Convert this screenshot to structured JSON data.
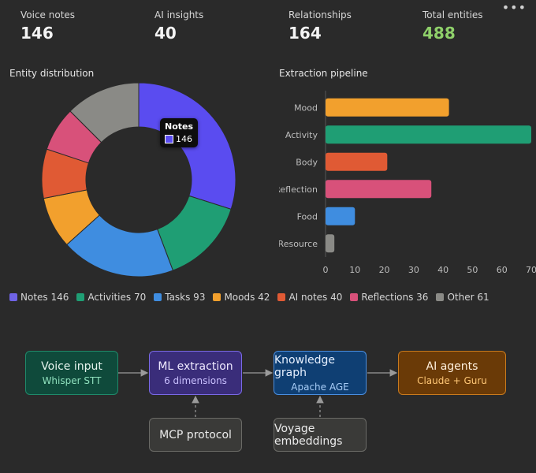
{
  "stats": [
    {
      "label": "Voice notes",
      "value": "146"
    },
    {
      "label": "AI insights",
      "value": "40"
    },
    {
      "label": "Relationships",
      "value": "164"
    },
    {
      "label": "Total entities",
      "value": "488"
    }
  ],
  "menu_icon": "ellipsis-icon",
  "entity_section_title": "Entity distribution",
  "pipeline_section_title": "Extraction pipeline",
  "tooltip": {
    "title": "Notes",
    "value": "146",
    "color": "#5a4cf0"
  },
  "legend": [
    {
      "label": "Notes 146",
      "color": "#6f63e6"
    },
    {
      "label": "Activities 70",
      "color": "#1f9e74"
    },
    {
      "label": "Tasks 93",
      "color": "#3f8de0"
    },
    {
      "label": "Moods 42",
      "color": "#f2a02d"
    },
    {
      "label": "AI notes 40",
      "color": "#e05a34"
    },
    {
      "label": "Reflections 36",
      "color": "#d8517a"
    },
    {
      "label": "Other 61",
      "color": "#8a8a86"
    }
  ],
  "chart_data": [
    {
      "type": "pie",
      "donut": true,
      "slices": [
        {
          "name": "Notes",
          "value": 146,
          "color": "#5a4cf0"
        },
        {
          "name": "Activities",
          "value": 70,
          "color": "#1f9e74"
        },
        {
          "name": "Tasks",
          "value": 93,
          "color": "#3f8de0"
        },
        {
          "name": "Moods",
          "value": 42,
          "color": "#f2a02d"
        },
        {
          "name": "AI notes",
          "value": 40,
          "color": "#e05a34"
        },
        {
          "name": "Reflections",
          "value": 36,
          "color": "#d8517a"
        },
        {
          "name": "Other",
          "value": 61,
          "color": "#8a8a86"
        }
      ]
    },
    {
      "type": "bar",
      "orientation": "horizontal",
      "categories": [
        "Mood",
        "Activity",
        "Body",
        "Reflection",
        "Food",
        "Resource"
      ],
      "values": [
        42,
        70,
        21,
        36,
        10,
        3
      ],
      "colors": [
        "#f2a02d",
        "#1f9e74",
        "#e05a34",
        "#d8517a",
        "#3f8de0",
        "#8a8a86"
      ],
      "xticks": [
        0,
        10,
        20,
        30,
        40,
        50,
        60,
        70
      ],
      "xlim": [
        0,
        70
      ],
      "grid": false
    }
  ],
  "flow": {
    "nodes": [
      {
        "title": "Voice input",
        "subtitle": "Whisper STT",
        "bg": "#0f4a3b",
        "border": "#1f8a6a",
        "title_color": "#e6f4ee",
        "sub_color": "#8fe0bd"
      },
      {
        "title": "ML extraction",
        "subtitle": "6 dimensions",
        "bg": "#3a2d7a",
        "border": "#7a69e6",
        "title_color": "#efeaff",
        "sub_color": "#c9c0ff"
      },
      {
        "title": "Knowledge graph",
        "subtitle": "Apache AGE",
        "bg": "#0f3f73",
        "border": "#4a8ee0",
        "title_color": "#e6f0ff",
        "sub_color": "#a8cdf7"
      },
      {
        "title": "AI agents",
        "subtitle": "Claude + Guru",
        "bg": "#6a3a07",
        "border": "#c97a1d",
        "title_color": "#fff0dd",
        "sub_color": "#ffc776"
      },
      {
        "title": "MCP protocol",
        "subtitle": "",
        "bg": "#3a3a38",
        "border": "#6a6a66",
        "title_color": "#ececec",
        "sub_color": "#cccccc"
      },
      {
        "title": "Voyage embeddings",
        "subtitle": "",
        "bg": "#3a3a38",
        "border": "#6a6a66",
        "title_color": "#ececec",
        "sub_color": "#cccccc"
      }
    ]
  }
}
